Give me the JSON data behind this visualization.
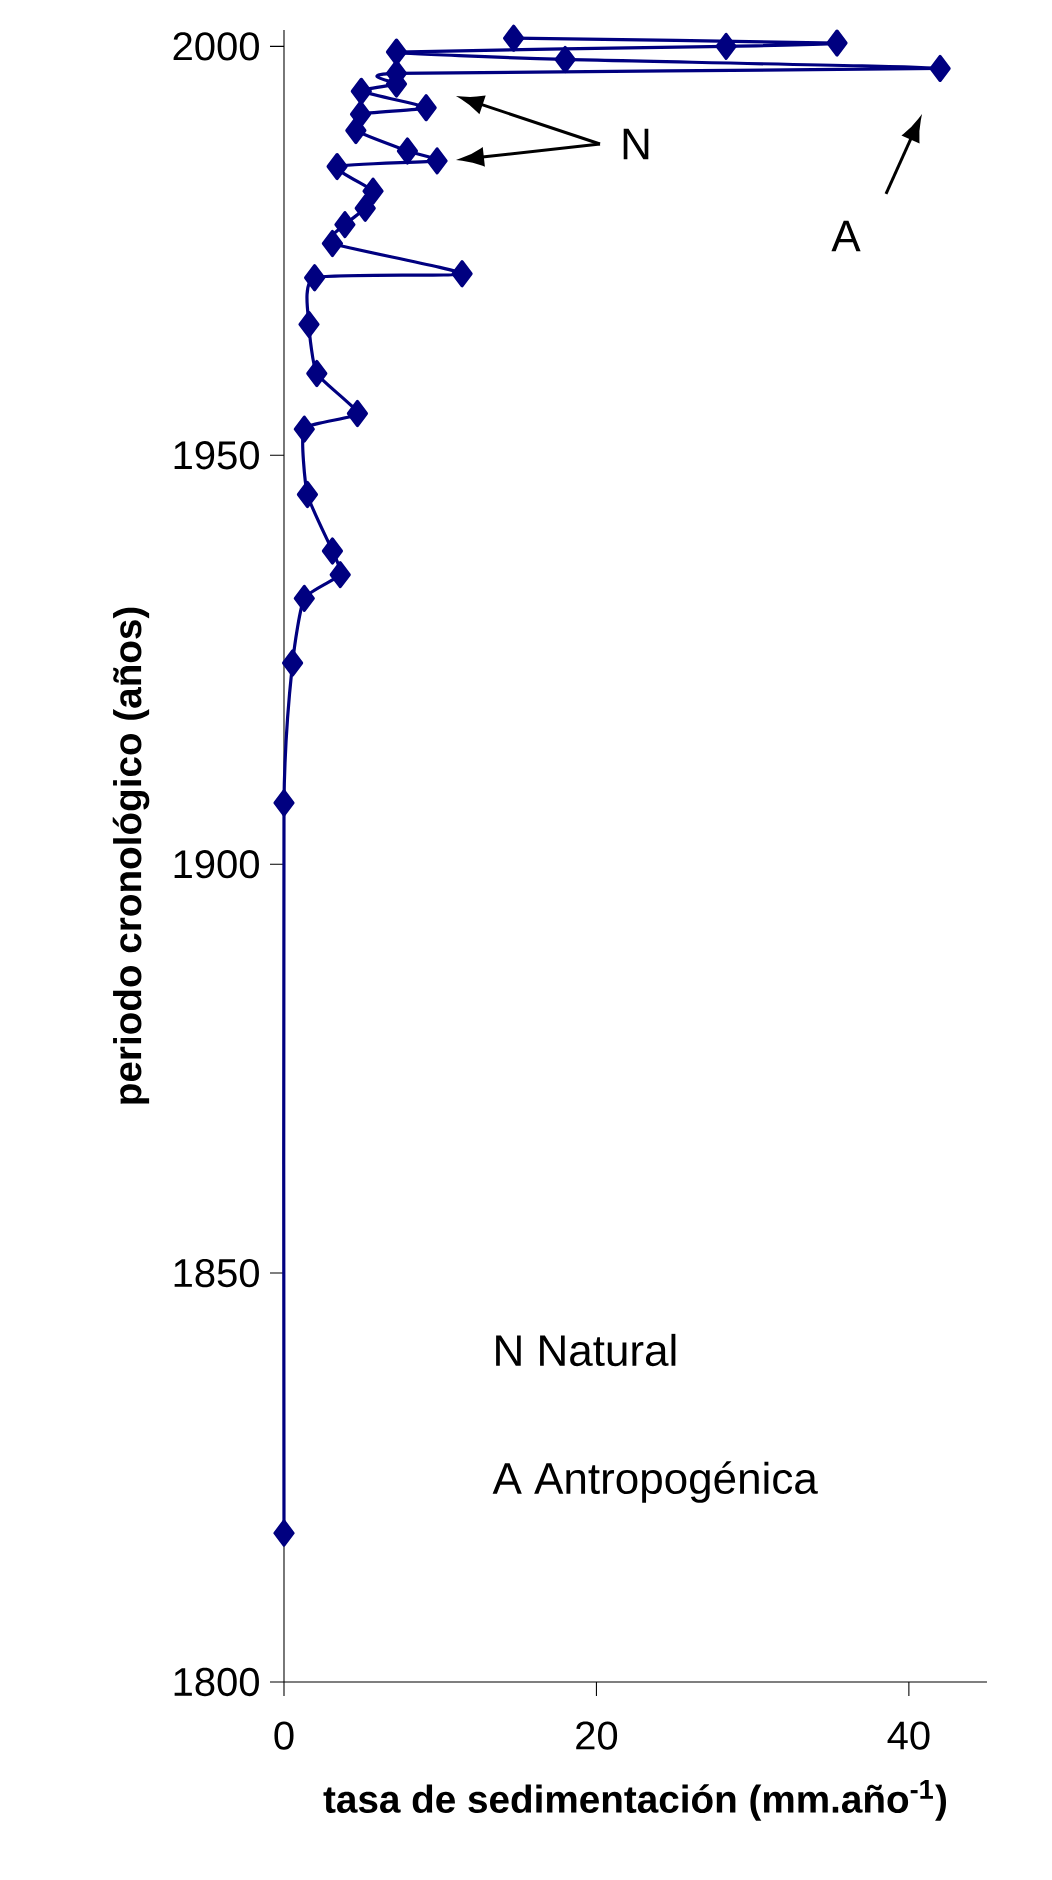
{
  "chart_data": {
    "type": "line",
    "xlabel": "tasa de sedimentación (mm.año$^{-1}$)",
    "ylabel": "periodo cronológico (años)",
    "x": [
      0,
      0,
      0.55,
      1.3,
      3.6,
      3.1,
      1.5,
      1.3,
      4.7,
      2.1,
      1.6,
      1.96,
      11.4,
      3.1,
      3.9,
      5.2,
      5.7,
      3.4,
      9.8,
      7.9,
      4.6,
      4.9,
      9.1,
      4.95,
      7.2,
      7.2,
      42,
      18,
      7.2,
      28.3,
      35.4,
      14.7
    ],
    "values": [
      1818.2,
      1907.5,
      1924.6,
      1932.5,
      1935.4,
      1938.3,
      1945.2,
      1953.2,
      1955.1,
      1960,
      1966,
      1971.7,
      1972.2,
      1975.9,
      1978.2,
      1980.2,
      1982.3,
      1985.3,
      1986,
      1987.2,
      1989.7,
      1991.7,
      1992.5,
      1994.5,
      1995.4,
      1996.7,
      1997.3,
      1998.4,
      1999.3,
      2000,
      2000.4,
      2001
    ],
    "color": "#000080",
    "marker": "diamond",
    "line_style": "solid",
    "xlim": [
      0,
      45
    ],
    "xticks": [
      0,
      20,
      40
    ],
    "ylim": [
      1800,
      2002
    ],
    "yticks": [
      1800,
      1850,
      1900,
      1950,
      2000
    ],
    "grid": false,
    "legend": false,
    "annotations": [
      "N",
      "A",
      "N  Natural",
      "A Antropogénica"
    ]
  }
}
